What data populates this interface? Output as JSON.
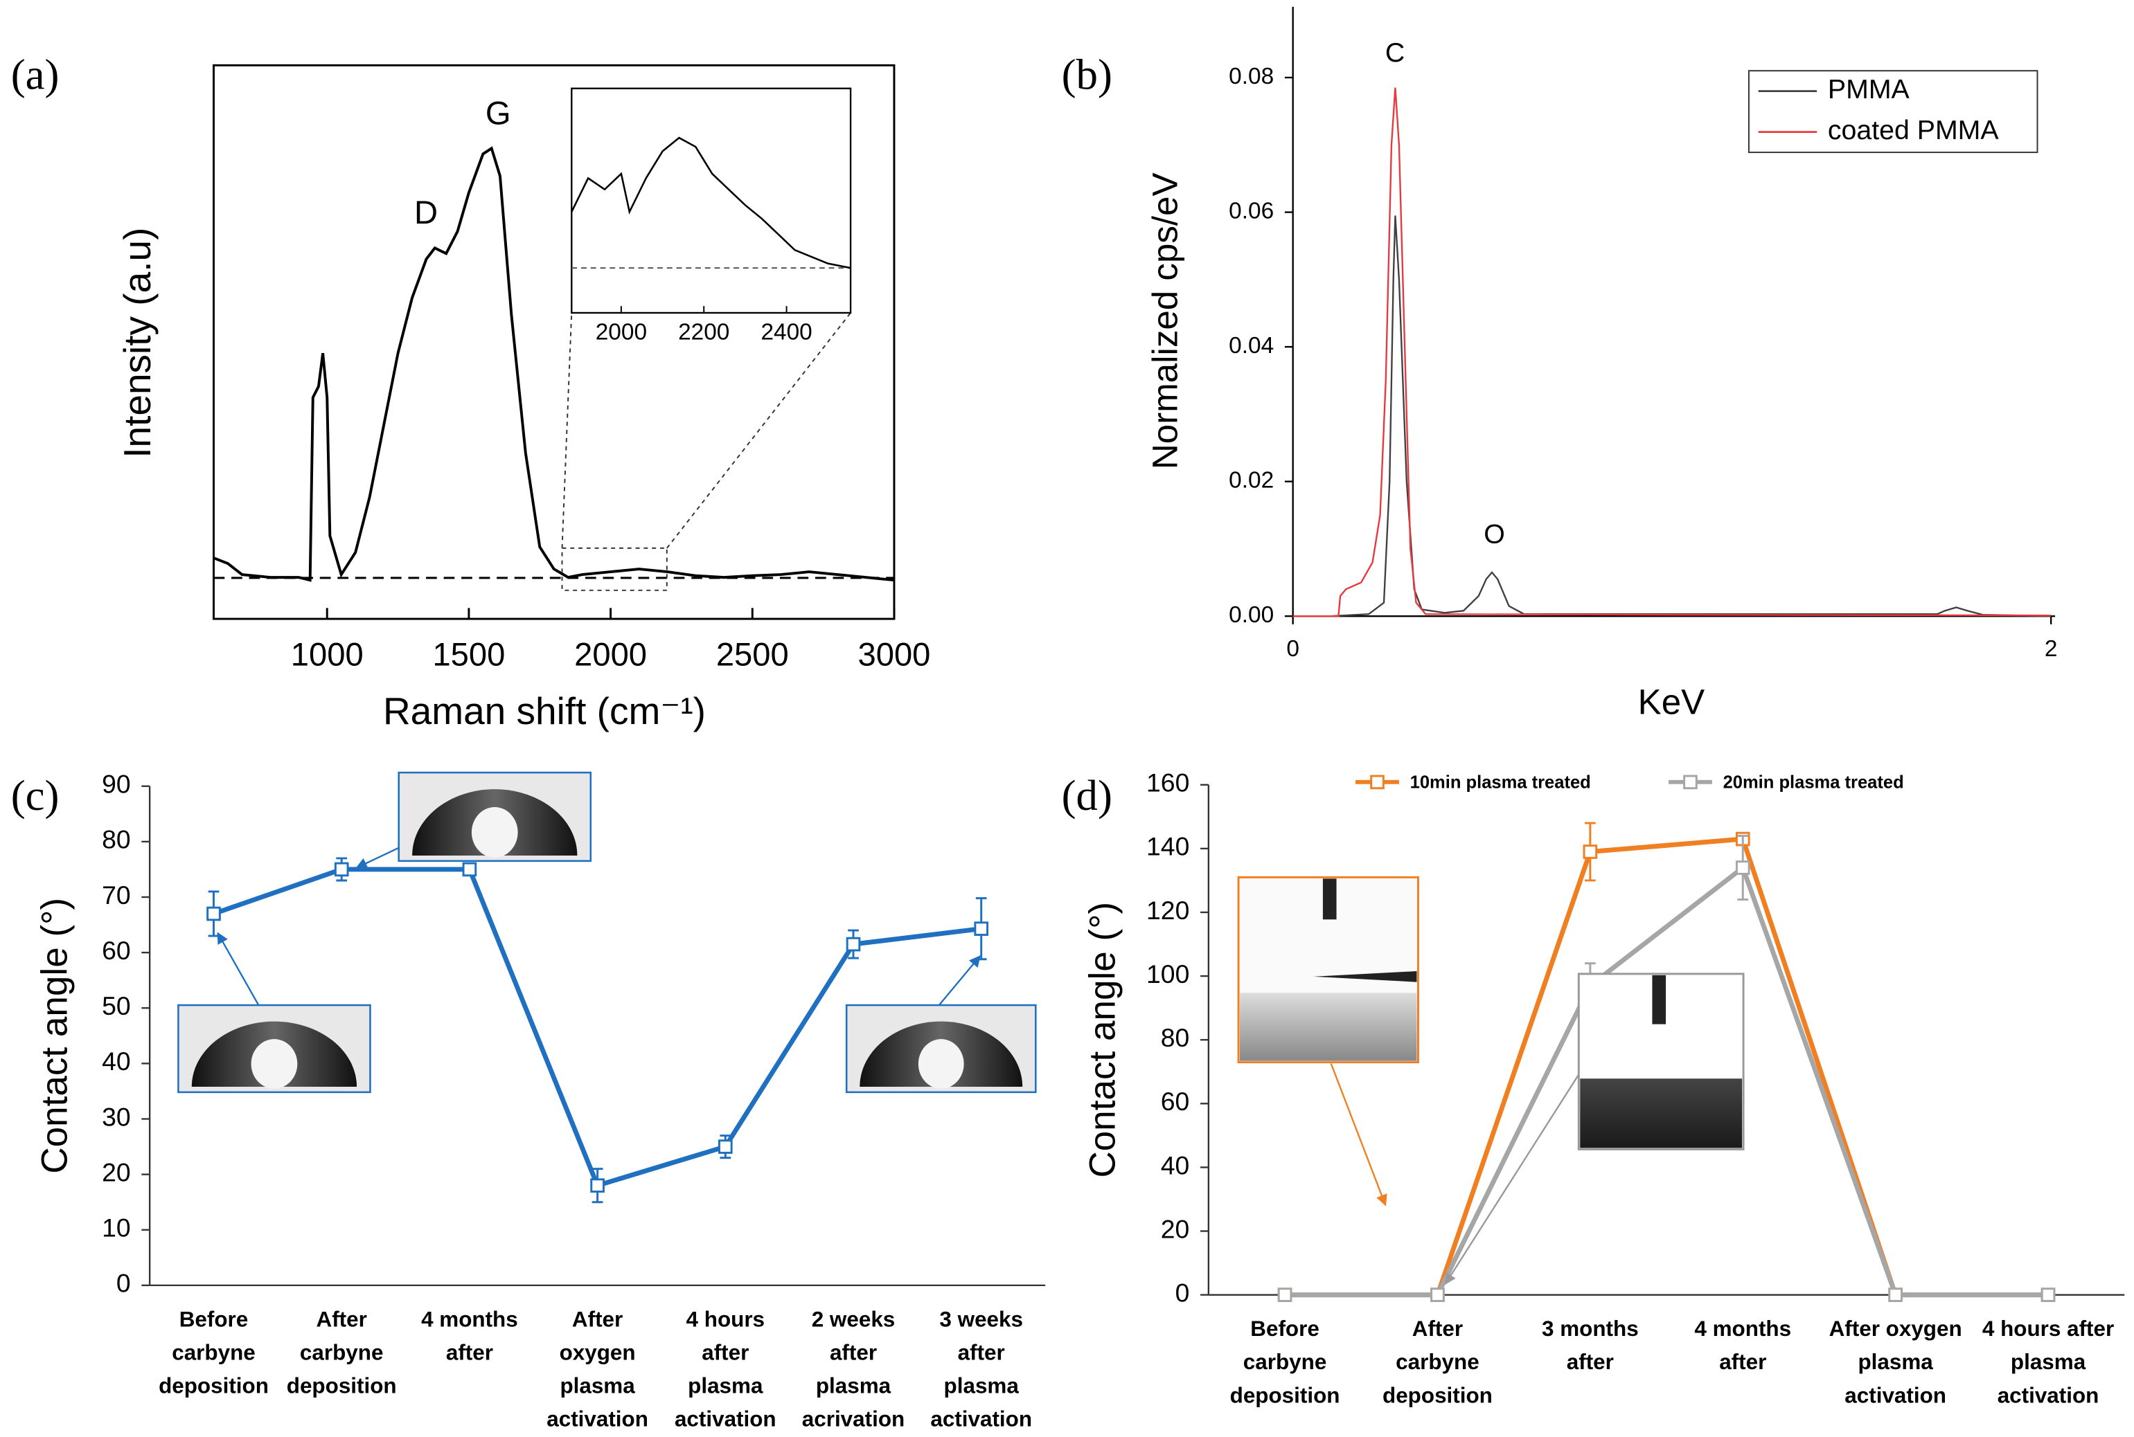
{
  "chart_data": [
    {
      "type": "line",
      "panel_label": "(a)",
      "x_label": "Raman shift (cm⁻¹)",
      "y_label": "Intensity (a.u)",
      "annotations": [
        "D",
        "G"
      ],
      "x": [
        600,
        650,
        700,
        800,
        900,
        940,
        950,
        970,
        985,
        1000,
        1010,
        1050,
        1100,
        1150,
        1200,
        1250,
        1300,
        1350,
        1380,
        1420,
        1460,
        1500,
        1550,
        1580,
        1610,
        1650,
        1700,
        1750,
        1800,
        1850,
        1900,
        2000,
        2100,
        2200,
        2300,
        2400,
        2500,
        2600,
        2700,
        2800,
        2900,
        3000
      ],
      "values": [
        0.11,
        0.1,
        0.08,
        0.075,
        0.075,
        0.07,
        0.4,
        0.42,
        0.48,
        0.4,
        0.15,
        0.08,
        0.12,
        0.22,
        0.35,
        0.48,
        0.58,
        0.65,
        0.67,
        0.66,
        0.7,
        0.77,
        0.84,
        0.85,
        0.8,
        0.55,
        0.3,
        0.13,
        0.09,
        0.075,
        0.08,
        0.085,
        0.09,
        0.085,
        0.078,
        0.075,
        0.078,
        0.08,
        0.085,
        0.08,
        0.075,
        0.07
      ],
      "color": "#000000",
      "baseline": 0.074,
      "xlim": [
        600,
        3000
      ],
      "ylim": [
        0,
        1
      ],
      "xticks": [
        1000,
        1500,
        2000,
        2500,
        3000
      ],
      "inset": {
        "x": [
          1880,
          1920,
          1960,
          2000,
          2020,
          2060,
          2100,
          2140,
          2180,
          2220,
          2260,
          2300,
          2340,
          2380,
          2420,
          2460,
          2500,
          2555
        ],
        "values": [
          0.45,
          0.6,
          0.55,
          0.62,
          0.45,
          0.6,
          0.72,
          0.78,
          0.74,
          0.62,
          0.55,
          0.48,
          0.42,
          0.35,
          0.28,
          0.25,
          0.22,
          0.2
        ],
        "baseline": 0.2,
        "xlim": [
          1880,
          2555
        ],
        "ylim": [
          0,
          1
        ],
        "xticks": [
          2000,
          2200,
          2400
        ]
      }
    },
    {
      "type": "line",
      "panel_label": "(b)",
      "x_label": "KeV",
      "y_label": "Normalized cps/eV",
      "annotations": [
        "C",
        "O"
      ],
      "series": [
        {
          "name": "PMMA",
          "color": "#404040",
          "x": [
            0,
            0.1,
            0.2,
            0.24,
            0.255,
            0.265,
            0.27,
            0.28,
            0.3,
            0.32,
            0.34,
            0.4,
            0.45,
            0.49,
            0.51,
            0.525,
            0.54,
            0.57,
            0.61,
            0.8,
            1.7,
            1.72,
            1.75,
            1.78,
            1.82,
            2
          ],
          "values": [
            0,
            0,
            0.0003,
            0.002,
            0.02,
            0.05,
            0.0595,
            0.05,
            0.02,
            0.004,
            0.001,
            0.0005,
            0.0008,
            0.003,
            0.0055,
            0.0065,
            0.0055,
            0.0015,
            0.0003,
            0.0003,
            0.0003,
            0.0008,
            0.0013,
            0.0008,
            0.0002,
            0
          ]
        },
        {
          "name": "coated PMMA",
          "color": "#e8383d",
          "x": [
            0,
            0.12,
            0.125,
            0.14,
            0.18,
            0.21,
            0.23,
            0.245,
            0.26,
            0.27,
            0.28,
            0.295,
            0.31,
            0.325,
            0.35,
            1.0,
            2
          ],
          "values": [
            0,
            0,
            0.003,
            0.004,
            0.005,
            0.008,
            0.015,
            0.035,
            0.07,
            0.0785,
            0.07,
            0.04,
            0.01,
            0.002,
            0.0003,
            0.0002,
            0.0001
          ]
        }
      ],
      "xlim": [
        0,
        2
      ],
      "ylim": [
        0,
        0.09
      ],
      "xticks": [
        0,
        2
      ],
      "yticks": [
        {
          "value": 0,
          "label": "0.00"
        },
        {
          "value": 0.02,
          "label": "0.02"
        },
        {
          "value": 0.04,
          "label": "0.04"
        },
        {
          "value": 0.06,
          "label": "0.06"
        },
        {
          "value": 0.08,
          "label": "0.08"
        }
      ]
    },
    {
      "type": "line",
      "panel_label": "(c)",
      "y_label": "Contact angle (°)",
      "categories": [
        [
          "Before",
          "carbyne",
          "deposition"
        ],
        [
          "After",
          "carbyne",
          "deposition"
        ],
        [
          "4 months",
          "after"
        ],
        [
          "After",
          "oxygen",
          "plasma",
          "activation"
        ],
        [
          "4 hours",
          "after",
          "plasma",
          "activation"
        ],
        [
          "2 weeks",
          "after",
          "plasma",
          "acrivation"
        ],
        [
          "3 weeks",
          "after",
          "plasma",
          "activation"
        ]
      ],
      "series": [
        {
          "color": "#1f70c1",
          "values": [
            67,
            75,
            75,
            18,
            25,
            61.5,
            64.3
          ],
          "errors": [
            4,
            2,
            0.5,
            3,
            2,
            2.5,
            5.5
          ]
        }
      ],
      "ylim": [
        0,
        90
      ],
      "yticks": [
        0,
        10,
        20,
        30,
        40,
        50,
        60,
        70,
        80,
        90
      ]
    },
    {
      "type": "line",
      "panel_label": "(d)",
      "y_label": "Contact angle (°)",
      "categories": [
        [
          "Before",
          "carbyne",
          "deposition"
        ],
        [
          "After",
          "carbyne",
          "deposition"
        ],
        [
          "3 months",
          "after"
        ],
        [
          "4 months",
          "after"
        ],
        [
          "After oxygen",
          "plasma",
          "activation"
        ],
        [
          "4 hours after",
          "plasma",
          "activation"
        ]
      ],
      "series": [
        {
          "name": "10min plasma treated",
          "color": "#f07f22",
          "values": [
            0,
            0,
            139,
            143,
            0,
            0
          ],
          "errors": [
            0,
            0,
            9,
            1,
            0,
            0
          ]
        },
        {
          "name": "20min plasma treated",
          "color": "#a6a6a6",
          "values": [
            0,
            0,
            97,
            134,
            0,
            0
          ],
          "errors": [
            0,
            0,
            7,
            10,
            0,
            0
          ]
        }
      ],
      "ylim": [
        0,
        160
      ],
      "yticks": [
        0,
        20,
        40,
        60,
        80,
        100,
        120,
        140,
        160
      ]
    }
  ]
}
